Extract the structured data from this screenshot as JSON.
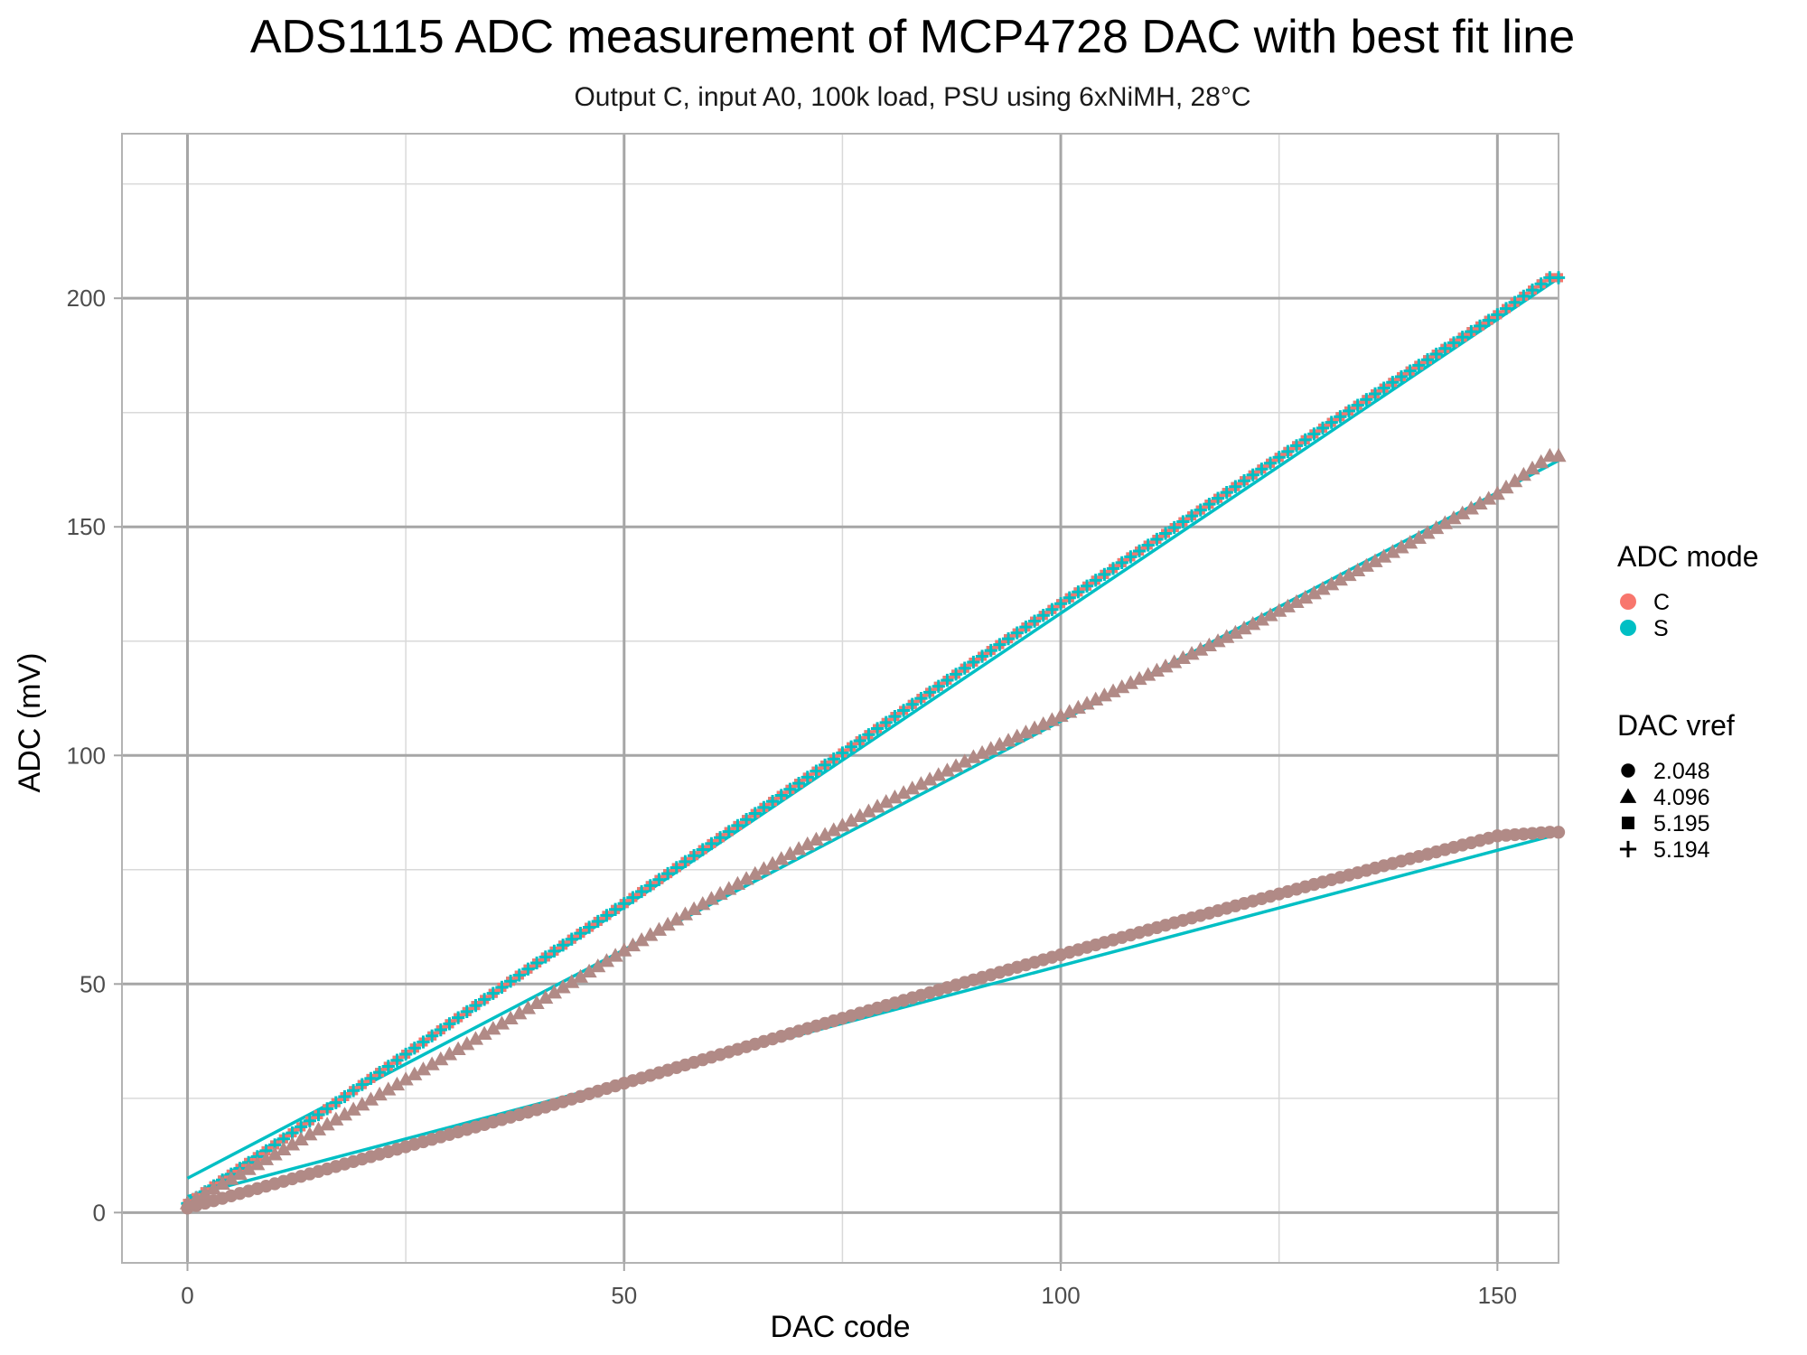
{
  "chart_data": {
    "type": "scatter",
    "title": "ADS1115 ADC measurement of MCP4728 DAC with best fit line",
    "subtitle": "Output C, input A0, 100k load, PSU using 6xNiMH, 28°C",
    "xlabel": "DAC code",
    "ylabel": "ADC (mV)",
    "xlim": [
      -7.5,
      157
    ],
    "ylim": [
      -11,
      236
    ],
    "x_ticks": [
      0,
      50,
      100,
      150
    ],
    "x_tick_labels": [
      "0",
      "50",
      "100",
      "150"
    ],
    "y_ticks": [
      0,
      50,
      100,
      150,
      200
    ],
    "y_tick_labels": [
      "0",
      "50",
      "100",
      "150",
      "200"
    ],
    "grid": true,
    "legend_position": "right",
    "legends": {
      "color": {
        "title": "ADC mode",
        "entries": [
          {
            "label": "C",
            "color": "#F8766D"
          },
          {
            "label": "S",
            "color": "#00BFC4"
          }
        ]
      },
      "shape": {
        "title": "DAC vref",
        "entries": [
          {
            "label": "2.048",
            "shape": "circle"
          },
          {
            "label": "4.096",
            "shape": "triangle"
          },
          {
            "label": "5.195",
            "shape": "square"
          },
          {
            "label": "5.194",
            "shape": "plus"
          }
        ]
      }
    },
    "series": [
      {
        "dac_vref": "2.048",
        "adc_mode": "C+S",
        "shape": "circle",
        "x": [
          0,
          10,
          20,
          30,
          40,
          50,
          60,
          70,
          80,
          90,
          100,
          110,
          120,
          130,
          140,
          150,
          156
        ],
        "y": [
          1.0,
          6.3,
          11.7,
          17.1,
          22.5,
          28.3,
          34.0,
          39.7,
          45.3,
          50.9,
          56.4,
          61.8,
          67.1,
          72.3,
          77.4,
          82.4,
          83.2
        ],
        "fit": {
          "intercept": 3.5,
          "slope": 0.505
        }
      },
      {
        "dac_vref": "4.096",
        "adc_mode": "C+S",
        "shape": "triangle",
        "x": [
          0,
          10,
          20,
          30,
          40,
          50,
          60,
          70,
          80,
          90,
          100,
          110,
          120,
          130,
          140,
          150,
          156
        ],
        "y": [
          2.0,
          12.7,
          23.6,
          34.6,
          45.8,
          57.3,
          68.6,
          79.5,
          89.8,
          99.6,
          108.6,
          117.6,
          126.8,
          136.4,
          146.5,
          157.2,
          165.5
        ],
        "fit": {
          "intercept": 7.5,
          "slope": 1.0
        }
      },
      {
        "dac_vref": "5.195",
        "adc_mode": "C+S",
        "shape": "square",
        "x": [
          0,
          10,
          20,
          30,
          40,
          50,
          60,
          70,
          80,
          90,
          100,
          110,
          120,
          130,
          140,
          150,
          156
        ],
        "y": [
          2.0,
          14.8,
          28.0,
          41.3,
          54.6,
          67.6,
          80.7,
          93.9,
          107.2,
          120.4,
          133.2,
          146.0,
          158.8,
          171.6,
          184.1,
          196.4,
          204.5
        ],
        "fit": {
          "intercept": 2.5,
          "slope": 1.286
        }
      },
      {
        "dac_vref": "5.194",
        "adc_mode": "C+S",
        "shape": "plus",
        "x": [
          0,
          10,
          20,
          30,
          40,
          50,
          60,
          70,
          80,
          90,
          100,
          110,
          120,
          130,
          140,
          150,
          156
        ],
        "y": [
          2.0,
          14.8,
          28.0,
          41.3,
          54.6,
          67.6,
          80.7,
          93.9,
          107.2,
          120.4,
          133.2,
          146.0,
          158.8,
          171.6,
          184.1,
          196.4,
          204.5
        ],
        "fit": {
          "intercept": 2.5,
          "slope": 1.286
        }
      }
    ],
    "colors": {
      "C": "#F8766D",
      "S": "#00BFC4",
      "overlap": "#B18A86",
      "fit_line": "#00BFC4"
    }
  }
}
